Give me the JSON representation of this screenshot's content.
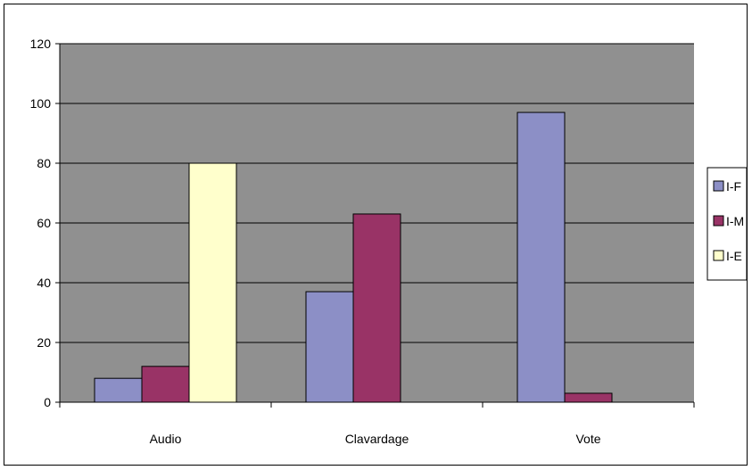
{
  "chart_data": {
    "type": "bar",
    "title": "",
    "xlabel": "",
    "ylabel": "",
    "categories": [
      "Audio",
      "Clavardage",
      "Vote"
    ],
    "series": [
      {
        "name": "I-F",
        "values": [
          8,
          37,
          97
        ],
        "color": "#8c8fc6"
      },
      {
        "name": "I-M",
        "values": [
          12,
          63,
          3
        ],
        "color": "#993366"
      },
      {
        "name": "I-E",
        "values": [
          80,
          0,
          0
        ],
        "color": "#ffffcc"
      }
    ],
    "ylim": [
      0,
      120
    ],
    "yticks": [
      0,
      20,
      40,
      60,
      80,
      100,
      120
    ],
    "grid": true,
    "plot_background": "#909090",
    "legend_position": "right"
  }
}
